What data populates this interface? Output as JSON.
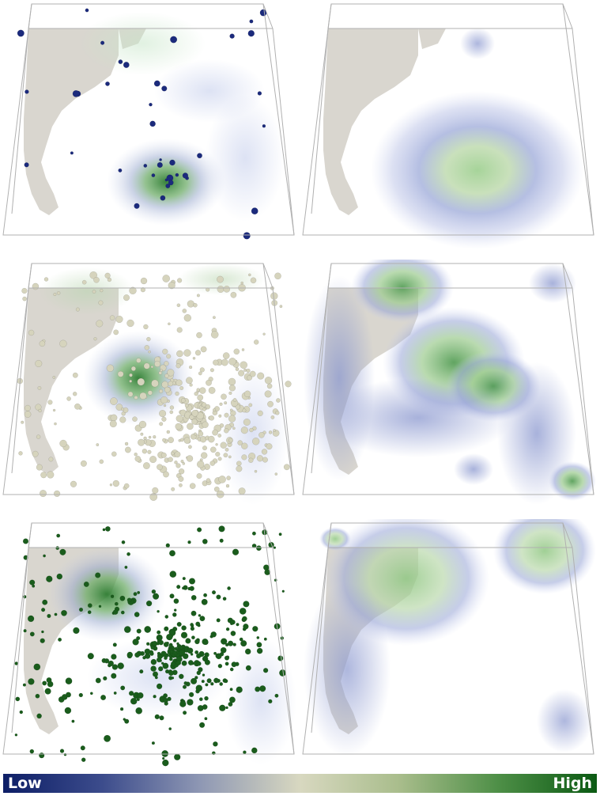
{
  "colorbar": {
    "low_label": "Low",
    "high_label": "High",
    "colors": [
      "#0d1e66",
      "#3c4c8c",
      "#8f98b4",
      "#d8d8c0",
      "#a9bd8c",
      "#4e8f47",
      "#0b5a13"
    ]
  },
  "panels": [
    {
      "name": "panel-top-left",
      "kind": "particles-and-field",
      "particle_color": "#1b2a7c"
    },
    {
      "name": "panel-top-right",
      "kind": "field-only"
    },
    {
      "name": "panel-middle-left",
      "kind": "particles-and-field",
      "particle_color": "#d6d4bd"
    },
    {
      "name": "panel-middle-right",
      "kind": "field-only"
    },
    {
      "name": "panel-bottom-left",
      "kind": "particles-and-field",
      "particle_color": "#1a5c1c"
    },
    {
      "name": "panel-bottom-right",
      "kind": "field-only"
    }
  ]
}
